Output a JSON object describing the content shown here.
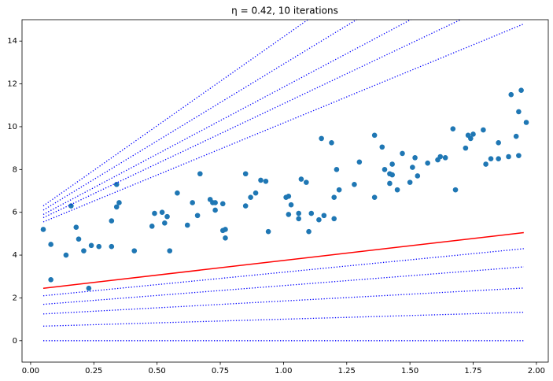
{
  "chart_data": {
    "type": "scatter",
    "title": "η = 0.42, 10 iterations",
    "xlim": [
      -0.034,
      2.047
    ],
    "ylim": [
      -1,
      15
    ],
    "xticks": [
      {
        "value": 0,
        "label": "0.00"
      },
      {
        "value": 0.25,
        "label": "0.25"
      },
      {
        "value": 0.5,
        "label": "0.50"
      },
      {
        "value": 0.75,
        "label": "0.75"
      },
      {
        "value": 1,
        "label": "1.00"
      },
      {
        "value": 1.25,
        "label": "1.25"
      },
      {
        "value": 1.5,
        "label": "1.50"
      },
      {
        "value": 1.75,
        "label": "1.75"
      },
      {
        "value": 2,
        "label": "2.00"
      }
    ],
    "yticks": [
      0,
      2,
      4,
      6,
      8,
      10,
      12,
      14
    ],
    "series": [
      {
        "type": "scatter",
        "color": "#1f77b4",
        "x": [
          0.05,
          0.08,
          0.08,
          0.14,
          0.16,
          0.18,
          0.19,
          0.21,
          0.23,
          0.24,
          0.27,
          0.32,
          0.32,
          0.34,
          0.34,
          0.35,
          0.41,
          0.48,
          0.49,
          0.52,
          0.53,
          0.54,
          0.55,
          0.58,
          0.62,
          0.64,
          0.66,
          0.67,
          0.71,
          0.72,
          0.73,
          0.73,
          0.76,
          0.76,
          0.77,
          0.77,
          0.85,
          0.85,
          0.87,
          0.89,
          0.91,
          0.93,
          0.94,
          1.01,
          1.02,
          1.02,
          1.03,
          1.06,
          1.06,
          1.07,
          1.09,
          1.1,
          1.11,
          1.14,
          1.15,
          1.16,
          1.19,
          1.2,
          1.2,
          1.21,
          1.22,
          1.28,
          1.3,
          1.36,
          1.36,
          1.39,
          1.4,
          1.42,
          1.42,
          1.43,
          1.43,
          1.45,
          1.47,
          1.5,
          1.51,
          1.52,
          1.53,
          1.57,
          1.61,
          1.62,
          1.64,
          1.67,
          1.68,
          1.72,
          1.73,
          1.74,
          1.75,
          1.79,
          1.8,
          1.82,
          1.85,
          1.85,
          1.89,
          1.9,
          1.92,
          1.93,
          1.93,
          1.94,
          1.96
        ],
        "values": [
          5.2,
          2.85,
          4.5,
          4.0,
          6.3,
          5.3,
          4.75,
          4.2,
          2.45,
          4.45,
          4.4,
          4.4,
          5.6,
          7.3,
          6.25,
          6.45,
          4.2,
          5.35,
          5.95,
          6.0,
          5.5,
          5.8,
          4.2,
          6.9,
          5.4,
          6.45,
          5.85,
          7.8,
          6.6,
          6.45,
          6.1,
          6.45,
          6.4,
          5.15,
          5.2,
          4.8,
          7.8,
          6.3,
          6.7,
          6.9,
          7.5,
          7.45,
          5.1,
          6.7,
          6.75,
          5.9,
          6.35,
          5.95,
          5.7,
          7.55,
          7.4,
          5.1,
          5.95,
          5.65,
          9.45,
          5.85,
          9.25,
          6.7,
          5.7,
          8.0,
          7.05,
          7.3,
          8.35,
          9.6,
          6.7,
          9.05,
          8.0,
          7.8,
          7.35,
          7.75,
          8.25,
          7.05,
          8.75,
          7.4,
          8.1,
          8.55,
          7.7,
          8.3,
          8.45,
          8.6,
          8.55,
          9.9,
          7.05,
          9.0,
          9.6,
          9.45,
          9.65,
          9.85,
          8.25,
          8.5,
          9.25,
          8.5,
          8.6,
          11.5,
          9.55,
          10.7,
          8.65,
          11.7,
          10.2
        ]
      },
      {
        "type": "line",
        "color": "#0000ff",
        "style": "dotted",
        "x": [
          0.05,
          1.95
        ],
        "values": [
          0,
          0
        ]
      },
      {
        "type": "line",
        "color": "#0000ff",
        "style": "dotted",
        "x": [
          0.05,
          1.95
        ],
        "values": [
          0.68,
          1.33
        ]
      },
      {
        "type": "line",
        "color": "#0000ff",
        "style": "dotted",
        "x": [
          0.05,
          1.95
        ],
        "values": [
          1.25,
          2.46
        ]
      },
      {
        "type": "line",
        "color": "#0000ff",
        "style": "dotted",
        "x": [
          0.05,
          1.95
        ],
        "values": [
          1.7,
          3.45
        ]
      },
      {
        "type": "line",
        "color": "#0000ff",
        "style": "dotted",
        "x": [
          0.05,
          1.95
        ],
        "values": [
          2.1,
          4.3
        ]
      },
      {
        "type": "line",
        "color": "#0000ff",
        "style": "dotted",
        "x": [
          0.05,
          1.95
        ],
        "values": [
          5.55,
          14.8
        ]
      },
      {
        "type": "line",
        "color": "#0000ff",
        "style": "dotted",
        "x": [
          0.05,
          1.95
        ],
        "values": [
          5.75,
          16.4
        ]
      },
      {
        "type": "line",
        "color": "#0000ff",
        "style": "dotted",
        "x": [
          0.05,
          1.95
        ],
        "values": [
          5.9,
          17.8
        ]
      },
      {
        "type": "line",
        "color": "#0000ff",
        "style": "dotted",
        "x": [
          0.05,
          1.95
        ],
        "values": [
          6.1,
          19.75
        ]
      },
      {
        "type": "line",
        "color": "#0000ff",
        "style": "dotted",
        "x": [
          0.05,
          1.95
        ],
        "values": [
          6.3,
          22.1
        ]
      },
      {
        "type": "line",
        "color": "#ff0000",
        "style": "solid",
        "x": [
          0.05,
          1.95
        ],
        "values": [
          2.45,
          5.05
        ]
      }
    ]
  }
}
